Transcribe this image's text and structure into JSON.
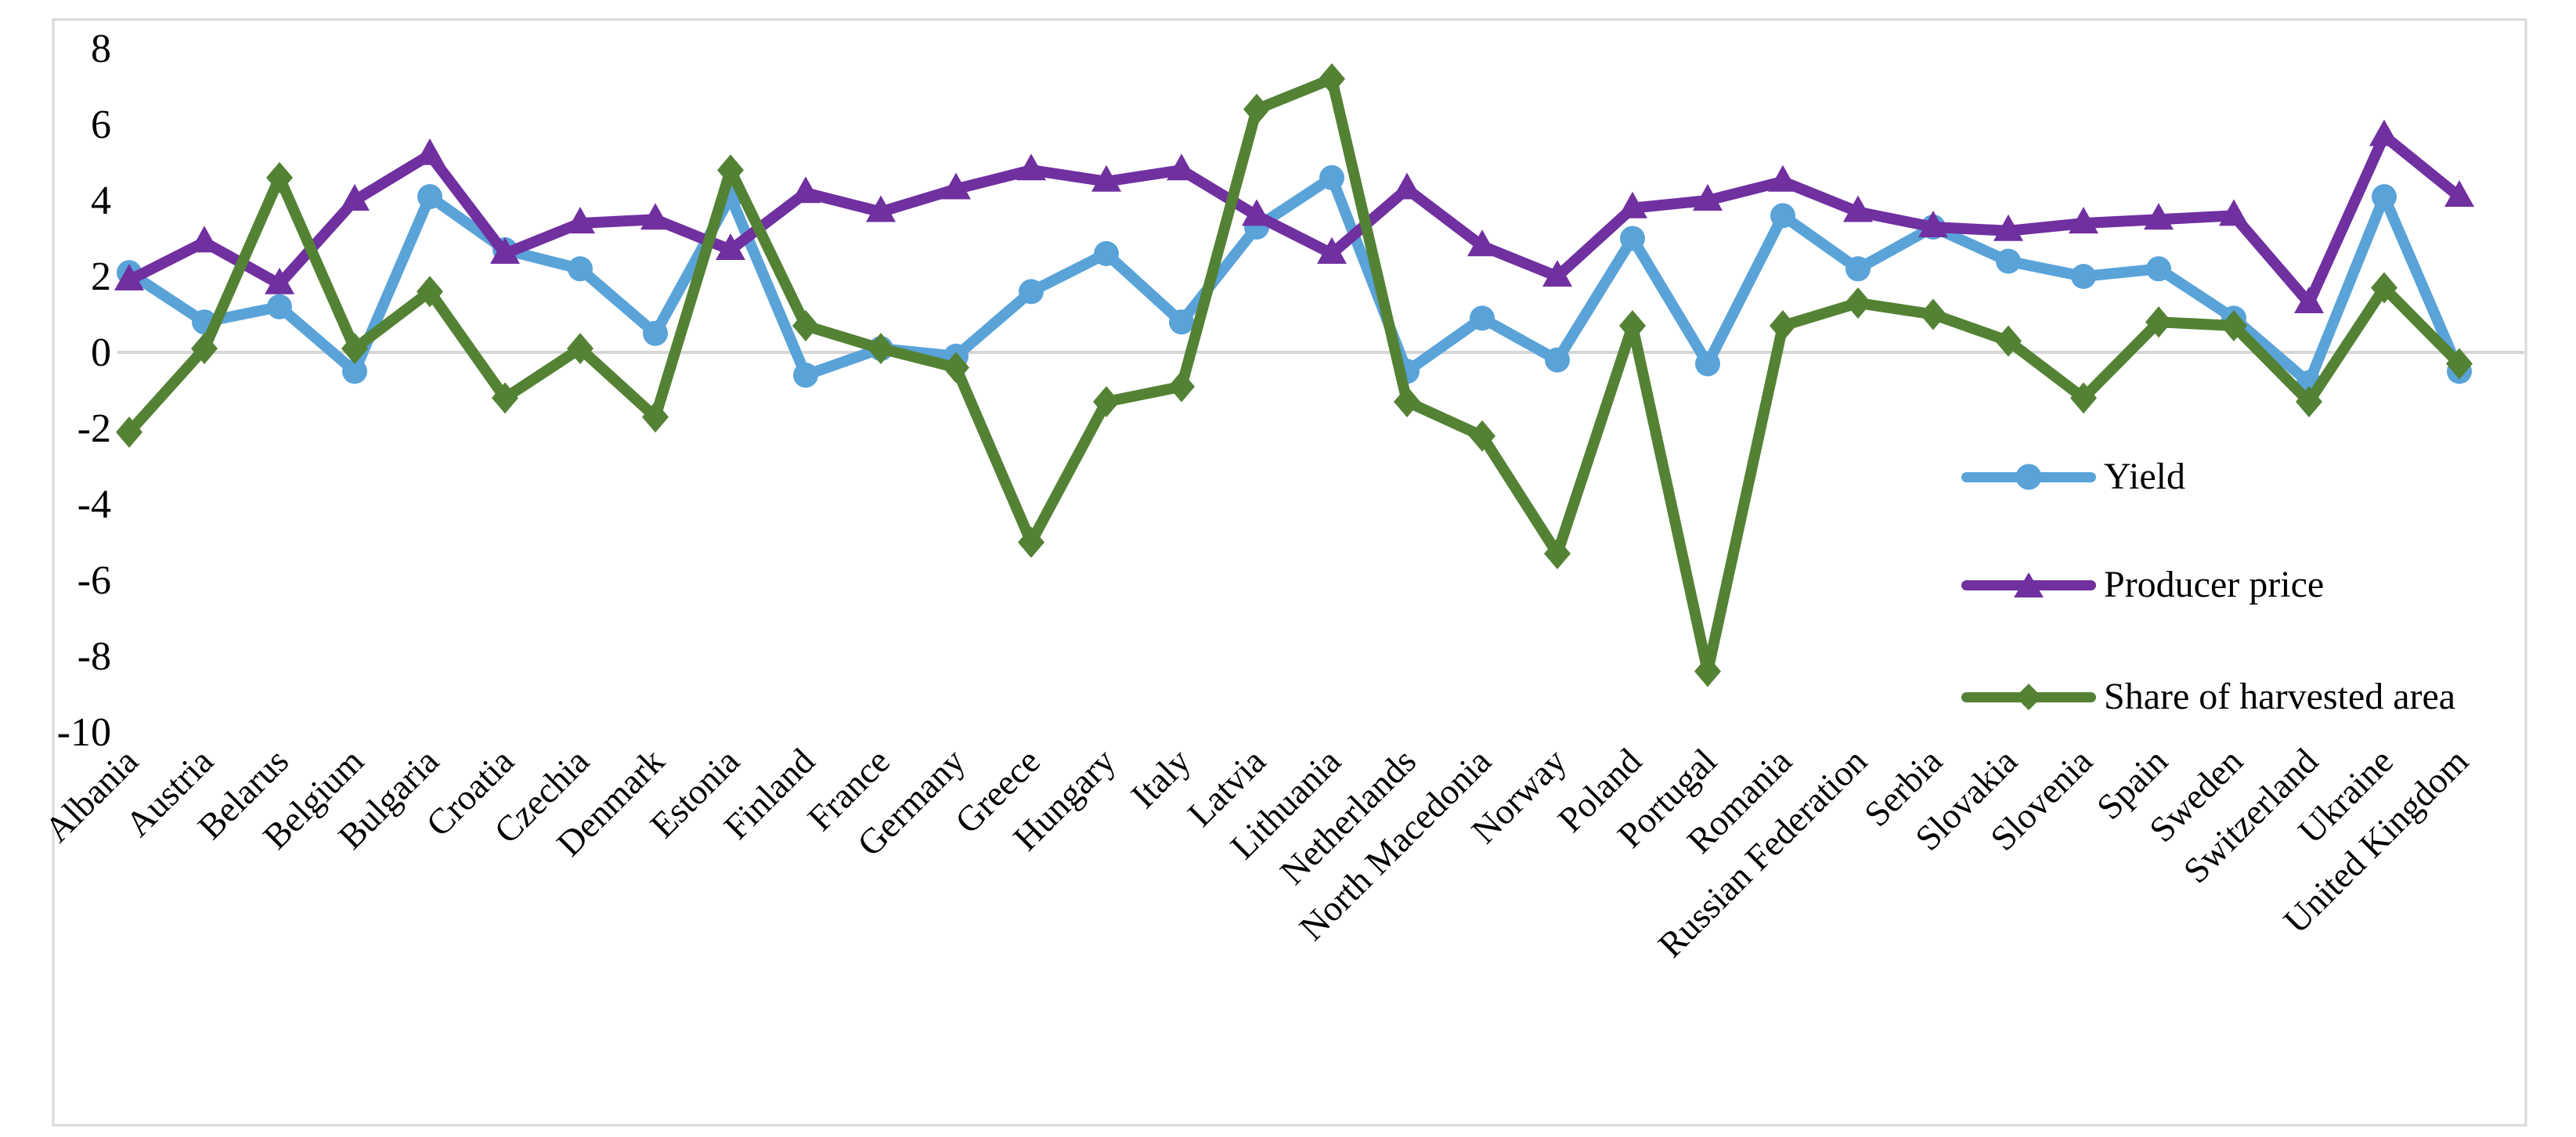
{
  "chart_data": {
    "type": "line",
    "title": "",
    "xlabel": "",
    "ylabel": "",
    "ylim": [
      -10,
      8
    ],
    "yticks": [
      8,
      6,
      4,
      2,
      0,
      -2,
      -4,
      -6,
      -8,
      -10
    ],
    "grid": "zero-line-only",
    "legend_position": "middle-right",
    "categories": [
      "Albania",
      "Austria",
      "Belarus",
      "Belgium",
      "Bulgaria",
      "Croatia",
      "Czechia",
      "Denmark",
      "Estonia",
      "Finland",
      "France",
      "Germany",
      "Greece",
      "Hungary",
      "Italy",
      "Latvia",
      "Lithuania",
      "Netherlands",
      "North Macedonia",
      "Norway",
      "Poland",
      "Portugal",
      "Romania",
      "Russian Federation",
      "Serbia",
      "Slovakia",
      "Slovenia",
      "Spain",
      "Sweden",
      "Switzerland",
      "Ukraine",
      "United Kingdom"
    ],
    "series": [
      {
        "name": "Yield",
        "marker": "circle",
        "color": "#59A3D9",
        "values": [
          2.1,
          0.8,
          1.2,
          -0.5,
          4.1,
          2.7,
          2.2,
          0.5,
          4.1,
          -0.6,
          0.1,
          -0.1,
          1.6,
          2.6,
          0.8,
          3.3,
          4.6,
          -0.5,
          0.9,
          -0.2,
          3.0,
          -0.3,
          3.6,
          2.2,
          3.3,
          2.4,
          2.0,
          2.2,
          0.9,
          -0.8,
          4.1,
          -0.5
        ]
      },
      {
        "name": "Producer price",
        "marker": "triangle",
        "color": "#7030A0",
        "values": [
          1.9,
          2.9,
          1.8,
          4.0,
          5.2,
          2.6,
          3.4,
          3.5,
          2.7,
          4.2,
          3.7,
          4.3,
          4.8,
          4.5,
          4.8,
          3.6,
          2.6,
          4.3,
          2.8,
          2.0,
          3.8,
          4.0,
          4.5,
          3.7,
          3.3,
          3.2,
          3.4,
          3.5,
          3.6,
          1.3,
          5.7,
          4.1
        ]
      },
      {
        "name": "Share of harvested area",
        "marker": "diamond",
        "color": "#548235",
        "values": [
          -2.1,
          0.1,
          4.6,
          0.1,
          1.6,
          -1.2,
          0.1,
          -1.7,
          4.8,
          0.7,
          0.1,
          -0.4,
          -5.0,
          -1.3,
          -0.9,
          6.4,
          7.2,
          -1.3,
          -2.2,
          -5.3,
          0.7,
          -8.4,
          0.7,
          1.3,
          1.0,
          0.3,
          -1.2,
          0.8,
          0.7,
          -1.3,
          1.7,
          -0.3
        ]
      }
    ],
    "colors": {
      "frame_border": "#D9D9D9",
      "zero_gridline": "#D6D6D6",
      "background": "#FFFFFF",
      "text": "#000000"
    }
  }
}
